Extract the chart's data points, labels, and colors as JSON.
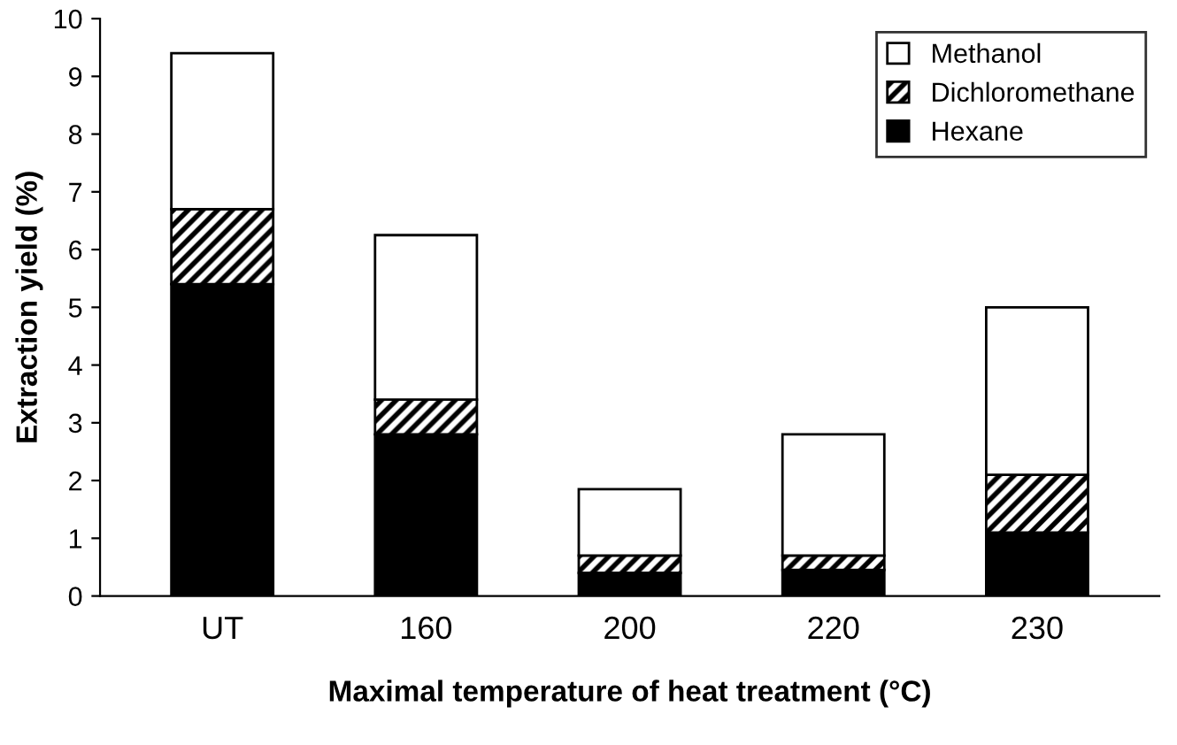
{
  "chart_data": {
    "type": "bar",
    "stacked": true,
    "xlabel": "Maximal temperature of heat treatment (°C)",
    "ylabel": "Extraction yield (%)",
    "categories": [
      "UT",
      "160",
      "200",
      "220",
      "230"
    ],
    "series": [
      {
        "name": "Hexane",
        "color": "#000000",
        "values": [
          5.4,
          2.8,
          0.4,
          0.45,
          1.1
        ]
      },
      {
        "name": "Dichloromethane",
        "color": "#000000",
        "values": [
          1.3,
          0.6,
          0.3,
          0.25,
          1.0
        ]
      },
      {
        "name": "Methanol",
        "color": "#ffffff",
        "values": [
          2.7,
          2.85,
          1.15,
          2.1,
          2.9
        ]
      }
    ],
    "ylim": [
      0,
      10
    ],
    "yticks": [
      0,
      1,
      2,
      3,
      4,
      5,
      6,
      7,
      8,
      9,
      10
    ],
    "grid": false,
    "legend": "top right"
  }
}
